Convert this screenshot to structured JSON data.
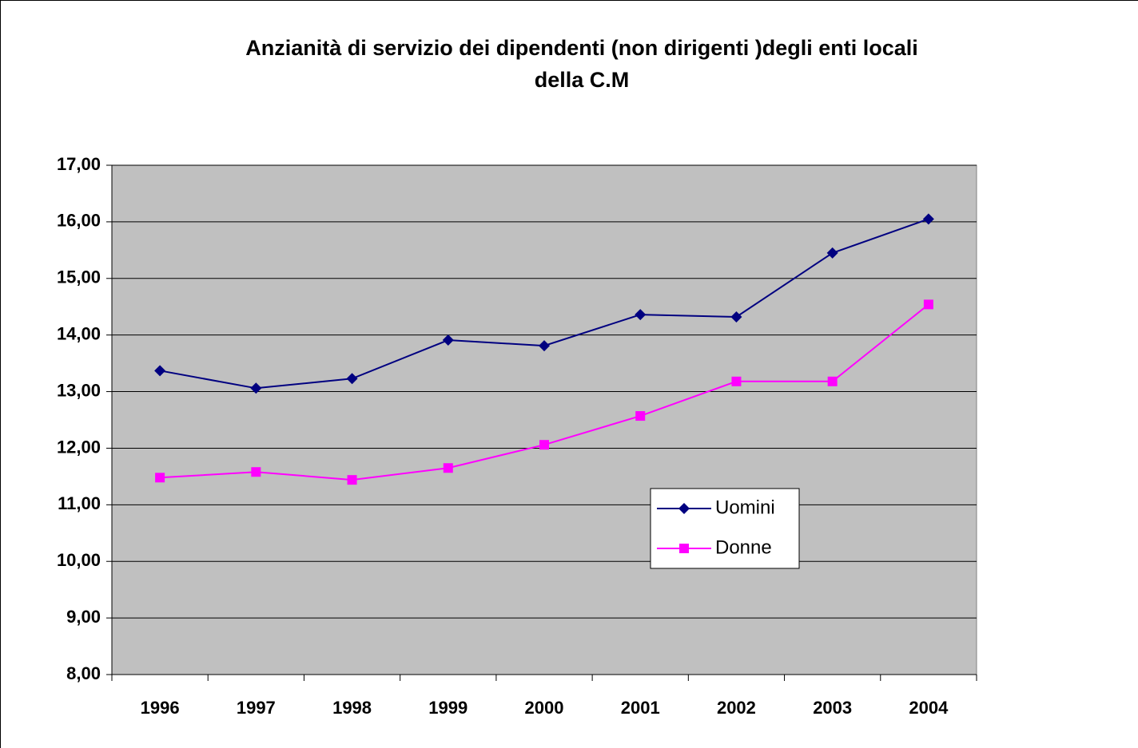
{
  "chart_data": {
    "type": "line",
    "title": "Anzianità di servizio dei dipendenti (non dirigenti )degli enti locali\ndella C.M",
    "categories": [
      "1996",
      "1997",
      "1998",
      "1999",
      "2000",
      "2001",
      "2002",
      "2003",
      "2004"
    ],
    "series": [
      {
        "name": "Uomini",
        "color": "#000080",
        "marker": "diamond",
        "values": [
          13.37,
          13.06,
          13.23,
          13.91,
          13.81,
          14.36,
          14.32,
          15.45,
          16.05
        ]
      },
      {
        "name": "Donne",
        "color": "#ff00ff",
        "marker": "square",
        "values": [
          11.48,
          11.58,
          11.44,
          11.65,
          12.06,
          12.57,
          13.18,
          13.18,
          14.54
        ]
      }
    ],
    "ylim": [
      8,
      17
    ],
    "yticks": [
      {
        "value": 8,
        "label": "8,00"
      },
      {
        "value": 9,
        "label": "9,00"
      },
      {
        "value": 10,
        "label": "10,00"
      },
      {
        "value": 11,
        "label": "11,00"
      },
      {
        "value": 12,
        "label": "12,00"
      },
      {
        "value": 13,
        "label": "13,00"
      },
      {
        "value": 14,
        "label": "14,00"
      },
      {
        "value": 15,
        "label": "15,00"
      },
      {
        "value": 16,
        "label": "16,00"
      },
      {
        "value": 17,
        "label": "17,00"
      }
    ],
    "grid": true,
    "legend": true
  }
}
